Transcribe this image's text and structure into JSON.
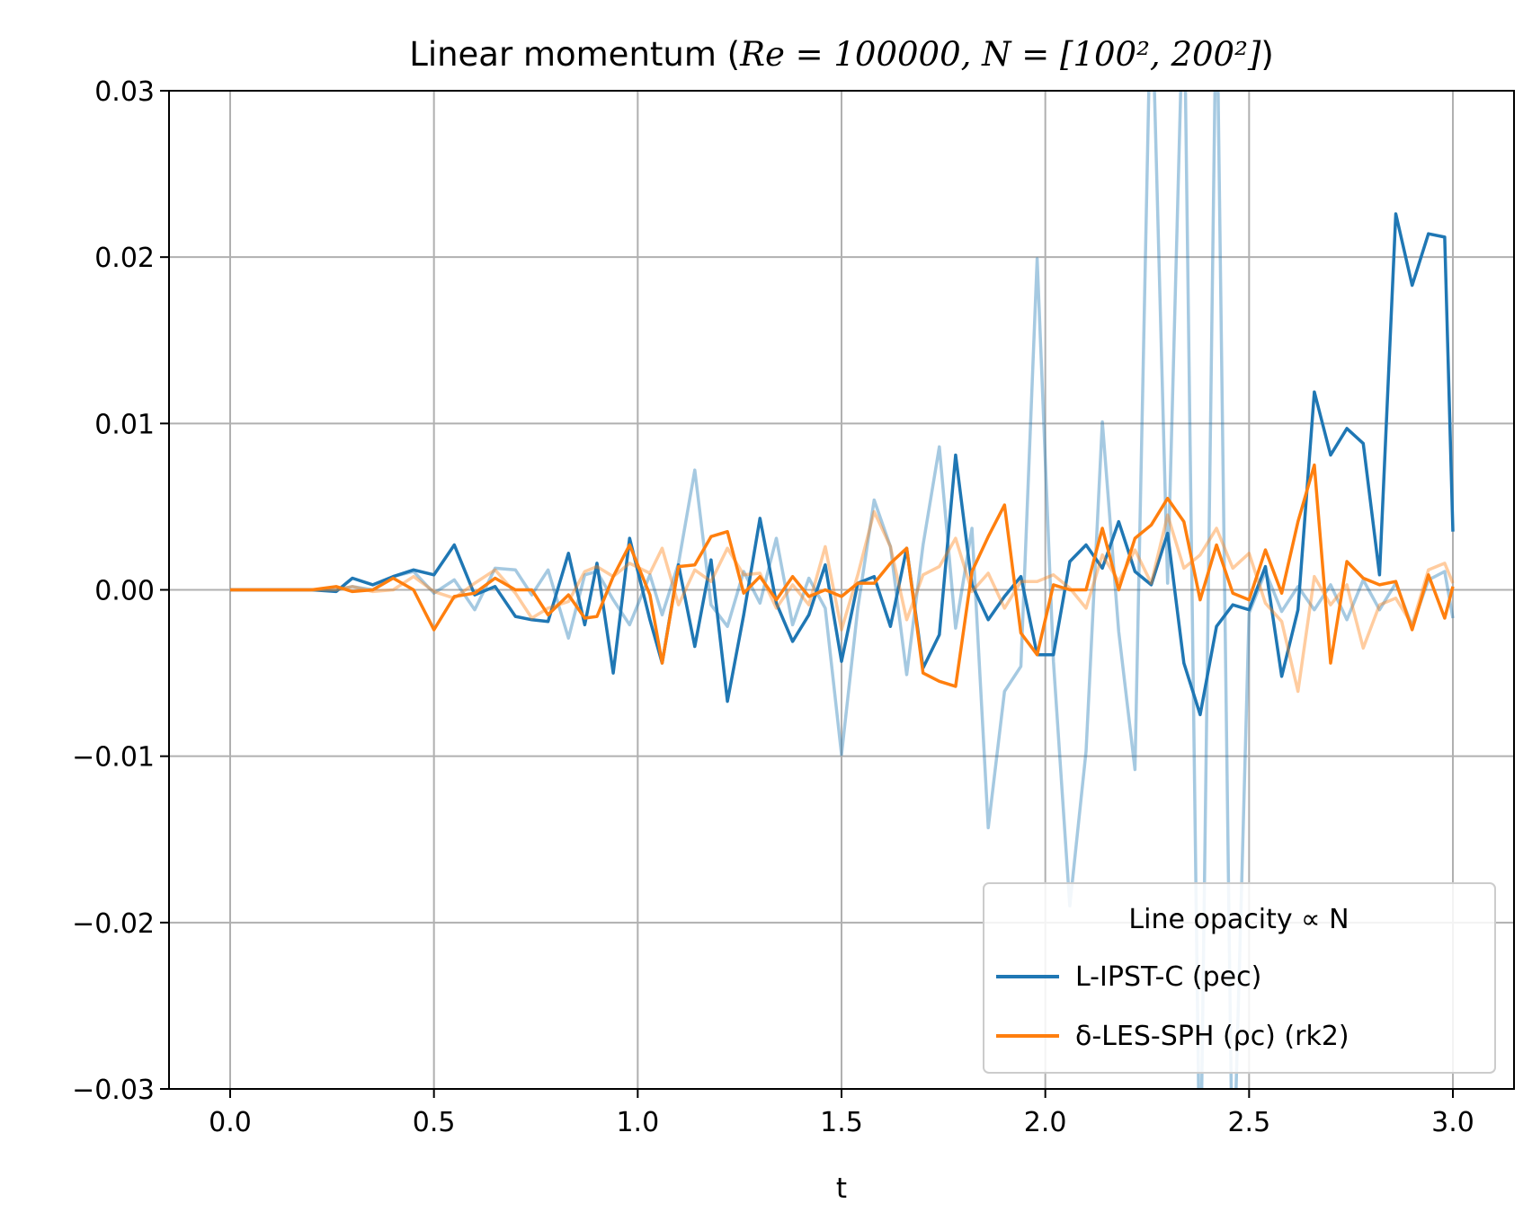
{
  "chart_data": {
    "type": "line",
    "title": {
      "prefix": "Linear momentum  (",
      "math": "Re = 100000, N = [100², 200²]",
      "suffix": ")"
    },
    "xlabel": "t",
    "ylabel": "",
    "xlim": [
      -0.15,
      3.15
    ],
    "ylim": [
      -0.03,
      0.03
    ],
    "xticks": [
      "0.0",
      "0.5",
      "1.0",
      "1.5",
      "2.0",
      "2.5",
      "3.0"
    ],
    "yticks": [
      "−0.03",
      "−0.02",
      "−0.01",
      "0.00",
      "0.01",
      "0.02",
      "0.03"
    ],
    "grid": true,
    "legend": {
      "title": "Line opacity ∝ N",
      "placement": "lower right",
      "entries": [
        {
          "label": "L-IPST-C (pec)",
          "color": "#1f77b4"
        },
        {
          "label": "δ-LES-SPH (ρc) (rk2)",
          "color": "#ff7f0e"
        }
      ]
    },
    "x": [
      0.0,
      0.05,
      0.1,
      0.15,
      0.2,
      0.26,
      0.3,
      0.35,
      0.4,
      0.45,
      0.5,
      0.55,
      0.6,
      0.65,
      0.7,
      0.74,
      0.78,
      0.83,
      0.87,
      0.9,
      0.94,
      0.98,
      1.03,
      1.06,
      1.1,
      1.14,
      1.18,
      1.22,
      1.26,
      1.3,
      1.34,
      1.38,
      1.42,
      1.46,
      1.5,
      1.54,
      1.58,
      1.62,
      1.66,
      1.7,
      1.74,
      1.78,
      1.82,
      1.86,
      1.9,
      1.94,
      1.98,
      2.02,
      2.06,
      2.1,
      2.14,
      2.18,
      2.22,
      2.26,
      2.3,
      2.34,
      2.38,
      2.42,
      2.46,
      2.5,
      2.54,
      2.58,
      2.62,
      2.66,
      2.7,
      2.74,
      2.78,
      2.82,
      2.86,
      2.9,
      2.94,
      2.98,
      3.0
    ],
    "series": [
      {
        "name": "L-IPST-C (pec) (N = 100²)",
        "color": "#1f77b4",
        "opacity": 0.4,
        "values": [
          0.0,
          0.0,
          0.0,
          0.0,
          0.0,
          0.0,
          0.0002,
          0.0,
          0.0008,
          0.0011,
          -0.0002,
          0.0006,
          -0.0012,
          0.0013,
          0.0012,
          -0.0003,
          0.0012,
          -0.0029,
          0.0009,
          0.0011,
          -0.0006,
          -0.0021,
          0.0009,
          -0.0015,
          0.0016,
          0.0072,
          -0.0009,
          -0.0022,
          0.0011,
          -0.0008,
          0.0031,
          -0.0021,
          0.0007,
          -0.0011,
          -0.0099,
          -0.0011,
          0.0054,
          0.0026,
          -0.0051,
          0.0027,
          0.0086,
          -0.0023,
          0.0037,
          -0.0143,
          -0.0061,
          -0.0046,
          0.0199,
          -0.0043,
          -0.019,
          -0.0097,
          0.0101,
          -0.0025,
          -0.0108,
          0.0372,
          0.0004,
          0.0372,
          -0.0372,
          0.0372,
          -0.0372,
          -0.0014,
          0.0011,
          -0.0013,
          0.0002,
          -0.0012,
          0.0003,
          -0.0018,
          0.0006,
          -0.0012,
          0.0004,
          -0.0022,
          0.0006,
          0.0011,
          -0.0017
        ]
      },
      {
        "name": "L-IPST-C (pec) (N = 200²)",
        "color": "#1f77b4",
        "opacity": 1.0,
        "values": [
          0.0,
          0.0,
          0.0,
          0.0,
          0.0,
          -0.0001,
          0.0007,
          0.0003,
          0.0008,
          0.0012,
          0.0009,
          0.0027,
          -0.0003,
          0.0002,
          -0.0016,
          -0.0018,
          -0.0019,
          0.0022,
          -0.0021,
          0.0016,
          -0.005,
          0.0031,
          -0.0018,
          -0.0044,
          0.0015,
          -0.0034,
          0.0018,
          -0.0067,
          -0.0015,
          0.0043,
          -0.0008,
          -0.0031,
          -0.0015,
          0.0015,
          -0.0043,
          0.0004,
          0.0008,
          -0.0022,
          0.0025,
          -0.0047,
          -0.0027,
          0.0081,
          0.0003,
          -0.0018,
          -0.0004,
          0.0008,
          -0.0039,
          -0.0039,
          0.0017,
          0.0027,
          0.0013,
          0.0041,
          0.0011,
          0.0003,
          0.0034,
          -0.0044,
          -0.0075,
          -0.0022,
          -0.0009,
          -0.0012,
          0.0014,
          -0.0052,
          -0.0012,
          0.0119,
          0.0081,
          0.0097,
          0.0088,
          0.0009,
          0.0226,
          0.0183,
          0.0214,
          0.0212,
          0.0035
        ]
      },
      {
        "name": "δ-LES-SPH (ρc) (rk2) (N = 100²)",
        "color": "#ff7f0e",
        "opacity": 0.4,
        "values": [
          0.0,
          0.0,
          0.0,
          0.0,
          0.0,
          0.0,
          0.0002,
          -0.0001,
          0.0,
          0.0008,
          -0.0001,
          -0.0005,
          0.0004,
          0.0012,
          -0.0002,
          -0.0017,
          -0.0011,
          -0.0007,
          0.0011,
          0.0014,
          0.0008,
          0.0016,
          0.001,
          0.0025,
          -0.0009,
          0.0012,
          0.0005,
          0.0025,
          0.0009,
          0.001,
          -0.0011,
          0.0003,
          -0.0009,
          0.0026,
          -0.0024,
          0.0009,
          0.0047,
          0.0026,
          -0.0018,
          0.0009,
          0.0014,
          0.0031,
          -0.0001,
          0.001,
          -0.0011,
          0.0005,
          0.0005,
          0.0009,
          0.0001,
          -0.0011,
          0.0021,
          0.0005,
          0.0024,
          0.0004,
          0.0045,
          0.0013,
          0.0021,
          0.0037,
          0.0013,
          0.0022,
          -0.0008,
          -0.0019,
          -0.0061,
          0.0008,
          -0.0009,
          0.0003,
          -0.0035,
          -0.0009,
          -0.0005,
          -0.0021,
          0.0012,
          0.0016,
          0.0004
        ]
      },
      {
        "name": "δ-LES-SPH (ρc) (rk2) (N = 200²)",
        "color": "#ff7f0e",
        "opacity": 1.0,
        "values": [
          0.0,
          0.0,
          0.0,
          0.0,
          0.0,
          0.0002,
          -0.0001,
          0.0,
          0.0007,
          0.0,
          -0.0024,
          -0.0004,
          -0.0002,
          0.0007,
          0.0,
          0.0,
          -0.0015,
          -0.0003,
          -0.0017,
          -0.0016,
          0.0008,
          0.0027,
          -0.0003,
          -0.0044,
          0.0014,
          0.0015,
          0.0032,
          0.0035,
          -0.0002,
          0.0008,
          -0.0006,
          0.0008,
          -0.0004,
          0.0,
          -0.0004,
          0.0004,
          0.0004,
          0.0016,
          0.0025,
          -0.005,
          -0.0055,
          -0.0058,
          0.0011,
          0.0032,
          0.0051,
          -0.0026,
          -0.0039,
          0.0003,
          0.0,
          0.0,
          0.0037,
          0.0,
          0.0031,
          0.0039,
          0.0055,
          0.0041,
          -0.0006,
          0.0027,
          -0.0002,
          -0.0006,
          0.0024,
          -0.0002,
          0.0041,
          0.0075,
          -0.0044,
          0.0017,
          0.0007,
          0.0003,
          0.0005,
          -0.0024,
          0.0009,
          -0.0017,
          0.0002
        ]
      }
    ]
  }
}
